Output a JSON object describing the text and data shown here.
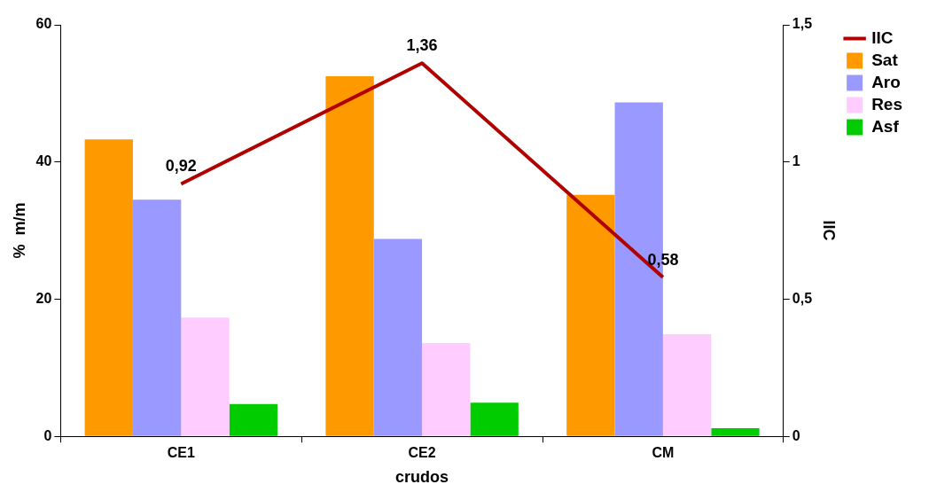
{
  "chart_data": {
    "type": "bar",
    "xlabel": "crudos",
    "ylabel": "%  m/m",
    "y2label": "IIC",
    "categories": [
      "CE1",
      "CE2",
      "CM"
    ],
    "series": [
      {
        "name": "Sat",
        "color": "#ff9900",
        "values": [
          43.3,
          52.5,
          35.2
        ]
      },
      {
        "name": "Aro",
        "color": "#9999ff",
        "values": [
          34.5,
          28.8,
          48.7
        ]
      },
      {
        "name": "Res",
        "color": "#ffccff",
        "values": [
          17.3,
          13.6,
          14.9
        ]
      },
      {
        "name": "Asf",
        "color": "#00cc00",
        "values": [
          4.7,
          4.9,
          1.2
        ]
      },
      {
        "name": "IIC",
        "type": "line",
        "axis": "y2",
        "color": "#b00000",
        "values": [
          0.92,
          1.36,
          0.58
        ],
        "value_labels": [
          "0,92",
          "1,36",
          "0,58"
        ],
        "marker": "none"
      }
    ],
    "ylim": [
      0,
      60
    ],
    "yticks": [
      0,
      20,
      40,
      60
    ],
    "y2lim": [
      0,
      1.5
    ],
    "y2ticks": [
      0,
      {
        "value": 0.5,
        "label": "0,5"
      },
      1,
      {
        "value": 1.5,
        "label": "1,5"
      }
    ],
    "grid": false,
    "legend": "right"
  }
}
